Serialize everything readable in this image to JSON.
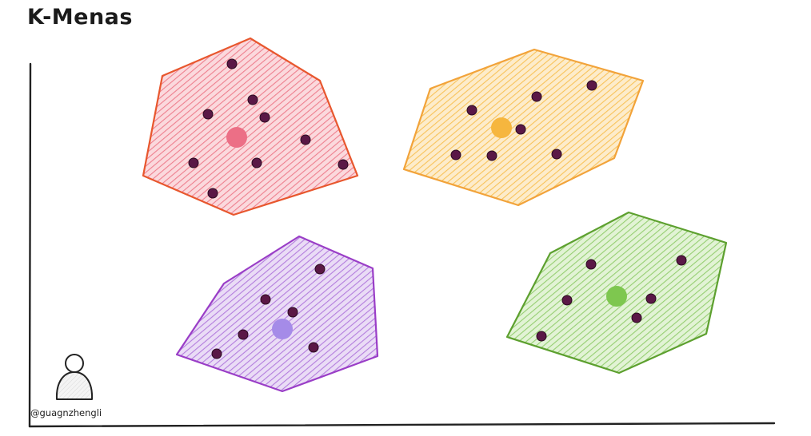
{
  "title": "K-Menas",
  "credit": "@guagnzhengli",
  "point_color": "#5a1846",
  "clusters": [
    {
      "name": "red",
      "stroke": "#e8572e",
      "fill": "#f4a3ad",
      "centroid_color": "#ec6f86"
    },
    {
      "name": "orange",
      "stroke": "#f2a33a",
      "fill": "#fbd37c",
      "centroid_color": "#f6b63e"
    },
    {
      "name": "purple",
      "stroke": "#9a3ec7",
      "fill": "#c9a0e6",
      "centroid_color": "#a58be8"
    },
    {
      "name": "green",
      "stroke": "#5da02f",
      "fill": "#b5df98",
      "centroid_color": "#7ec74f"
    }
  ],
  "icons": [
    "user-avatar-icon"
  ]
}
